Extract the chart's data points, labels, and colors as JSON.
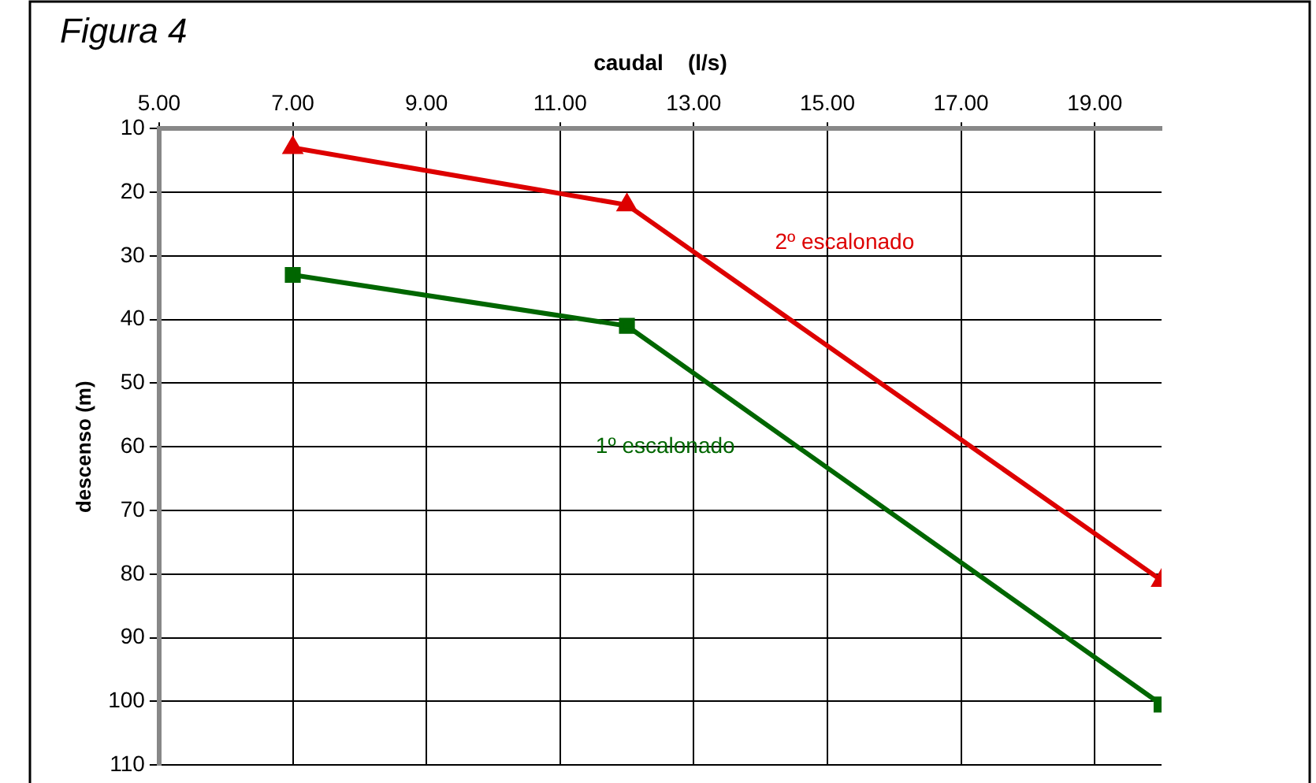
{
  "chart_data": {
    "type": "line",
    "title": "Figura 4",
    "xlabel": "caudal    (l/s)",
    "ylabel": "descenso (m)",
    "xlim": [
      5,
      20
    ],
    "xticks": [
      {
        "value": 5,
        "label": "5.00"
      },
      {
        "value": 7,
        "label": "7.00"
      },
      {
        "value": 9,
        "label": "9.00"
      },
      {
        "value": 11,
        "label": "11.00"
      },
      {
        "value": 13,
        "label": "13.00"
      },
      {
        "value": 15,
        "label": "15.00"
      },
      {
        "value": 17,
        "label": "17.00"
      },
      {
        "value": 19,
        "label": "19.00"
      }
    ],
    "ylim": [
      110,
      10
    ],
    "yticks": [
      10,
      20,
      30,
      40,
      50,
      60,
      70,
      80,
      90,
      100,
      110
    ],
    "grid": true,
    "legend": false,
    "series": [
      {
        "name": "1º escalonado",
        "color": "#006600",
        "marker": "square",
        "x": [
          7,
          12,
          20
        ],
        "values": [
          33,
          41,
          100.5
        ]
      },
      {
        "name": "2º escalonado",
        "color": "#dd0000",
        "marker": "triangle",
        "x": [
          7,
          12,
          20
        ],
        "values": [
          13,
          22,
          81
        ]
      }
    ]
  }
}
